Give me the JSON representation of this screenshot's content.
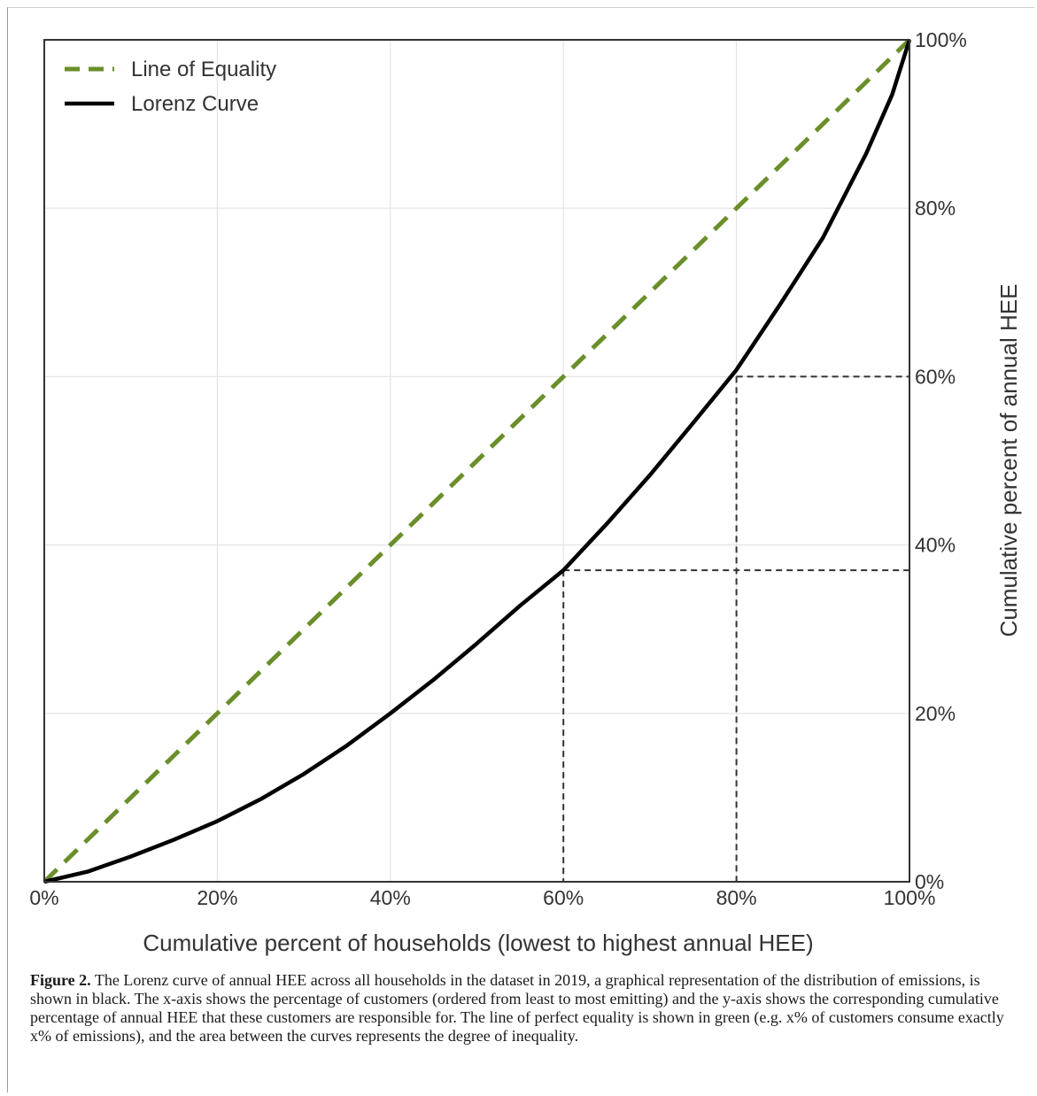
{
  "chart_data": {
    "type": "line",
    "xlabel": "Cumulative percent of households (lowest to highest annual HEE)",
    "ylabel": "Cumulative percent of annual HEE",
    "xlim": [
      0,
      100
    ],
    "ylim": [
      0,
      100
    ],
    "x_ticks": [
      "0%",
      "20%",
      "40%",
      "60%",
      "80%",
      "100%"
    ],
    "y_ticks": [
      "0%",
      "20%",
      "40%",
      "60%",
      "80%",
      "100%"
    ],
    "y_axis_side": "right",
    "grid": true,
    "legend": {
      "placement": "top-left"
    },
    "series": [
      {
        "name": "Line of Equality",
        "color": "#6a8f2a",
        "style": "dashed",
        "x": [
          0,
          100
        ],
        "y": [
          0,
          100
        ]
      },
      {
        "name": "Lorenz Curve",
        "color": "#000000",
        "style": "solid",
        "x": [
          0,
          5,
          10,
          15,
          20,
          25,
          30,
          35,
          40,
          45,
          50,
          55,
          60,
          65,
          70,
          75,
          80,
          85,
          90,
          95,
          98,
          100
        ],
        "y": [
          0,
          1.2,
          3.0,
          5.0,
          7.2,
          9.8,
          12.8,
          16.2,
          20.0,
          24.0,
          28.3,
          32.8,
          37.0,
          42.5,
          48.3,
          54.5,
          60.8,
          68.5,
          76.5,
          86.5,
          93.5,
          100
        ]
      }
    ],
    "reference_lines": [
      {
        "x": 60,
        "y": 37,
        "color": "#333333",
        "style": "dashed"
      },
      {
        "x": 80,
        "y": 60,
        "color": "#333333",
        "style": "dashed"
      }
    ]
  },
  "caption": {
    "label": "Figure 2.",
    "text": " The Lorenz curve of annual HEE across all households in the dataset in 2019, a graphical representation of the distribution of emissions, is shown in black. The x-axis shows the percentage of customers (ordered from least to most emitting) and the y-axis shows the corresponding cumulative percentage of annual HEE that these customers are responsible for. The line of perfect equality is shown in green (e.g. x% of customers consume exactly x% of emissions), and the area between the curves represents the degree of inequality."
  }
}
